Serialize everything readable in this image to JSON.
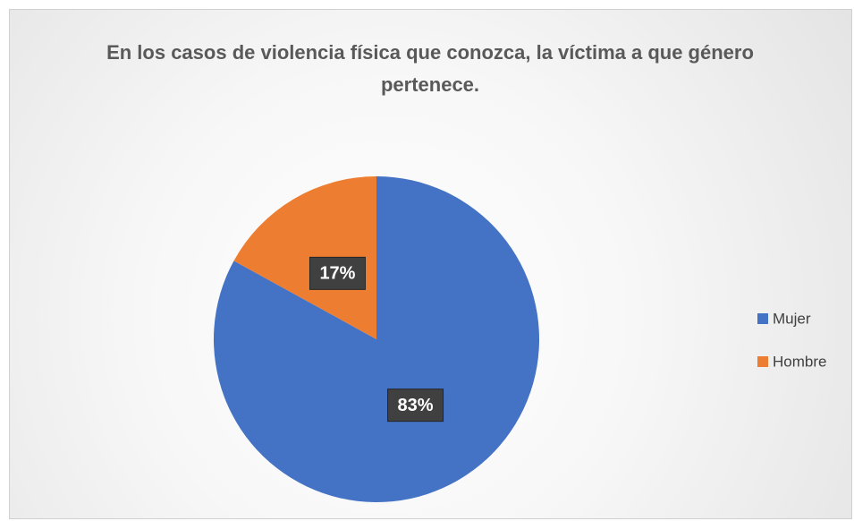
{
  "chart_data": {
    "type": "pie",
    "title": "En los casos de violencia física que conozca, la víctima a que género pertenece.",
    "categories": [
      "Mujer",
      "Hombre"
    ],
    "values": [
      83,
      17
    ],
    "value_labels": [
      "83%",
      "17%"
    ],
    "colors": [
      "#4472c4",
      "#ed7d31"
    ],
    "legend": "right"
  }
}
